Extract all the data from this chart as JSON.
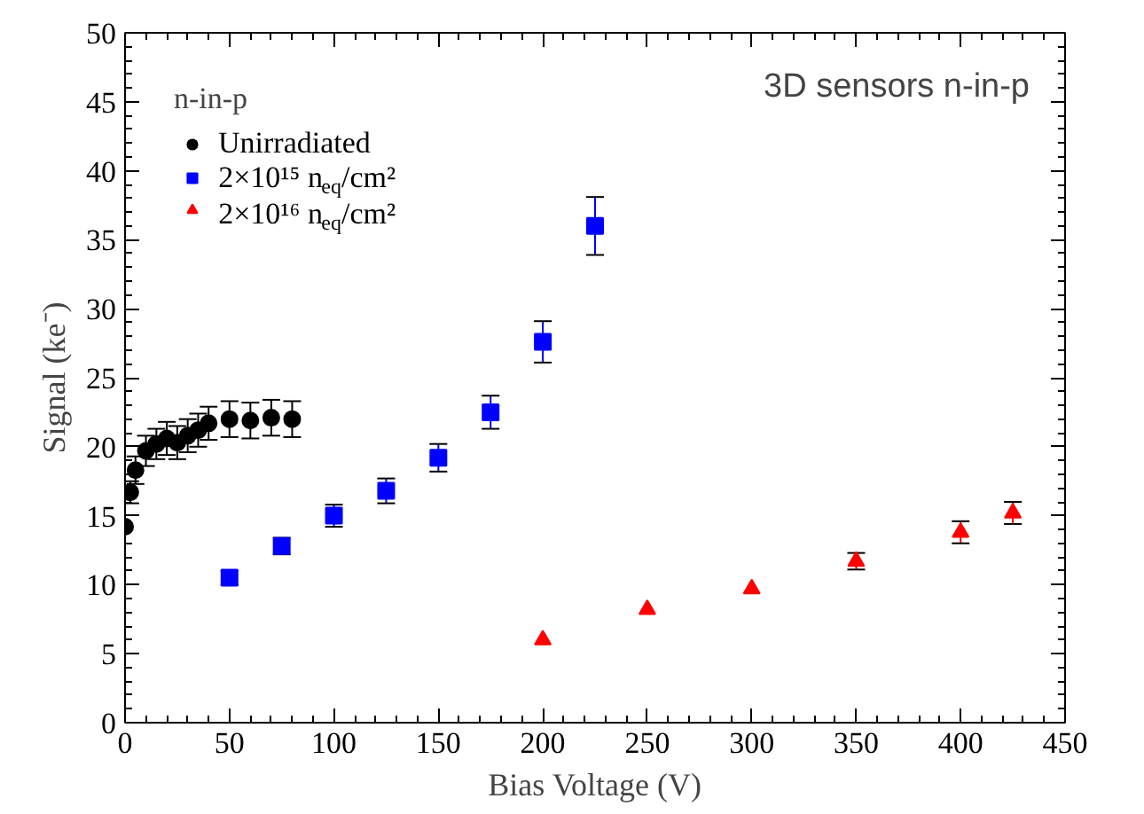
{
  "chart_data": {
    "type": "scatter",
    "xlabel": "Bias Voltage (V)",
    "ylabel": "Signal (ke⁻)",
    "legend_title": "n-in-p",
    "annotations": [
      "3D sensors n-in-p"
    ],
    "xlim": [
      0,
      450
    ],
    "xticks": [
      0,
      50,
      100,
      150,
      200,
      250,
      300,
      350,
      400,
      450
    ],
    "ylim": [
      0,
      50
    ],
    "yticks": [
      0,
      5,
      10,
      15,
      20,
      25,
      30,
      35,
      40,
      45,
      50
    ],
    "grid": false,
    "legend": "top left",
    "series": [
      {
        "name": "Unirradiated",
        "color": "#000000",
        "marker": "circle",
        "x": [
          0,
          2.5,
          5,
          10,
          15,
          20,
          25,
          30,
          35,
          40,
          50,
          60,
          70,
          80
        ],
        "values": [
          14.2,
          16.7,
          18.3,
          19.7,
          20.2,
          20.6,
          20.3,
          20.8,
          21.2,
          21.7,
          22,
          21.9,
          22.1,
          22
        ],
        "errors": [
          null,
          0.8,
          1,
          1.1,
          1.1,
          1.2,
          1.2,
          1.2,
          1.2,
          1.2,
          1.3,
          1.3,
          1.3,
          1.3
        ]
      },
      {
        "name": "2×10¹⁵ n$_{eq}$/cm²",
        "color": "#0000ff",
        "marker": "square",
        "x": [
          50,
          75,
          100,
          125,
          150,
          175,
          200,
          225
        ],
        "values": [
          10.5,
          12.8,
          15,
          16.8,
          19.2,
          22.5,
          27.6,
          36
        ],
        "errors": [
          0.5,
          0.6,
          0.8,
          0.9,
          1,
          1.2,
          1.5,
          2.1
        ]
      },
      {
        "name": "2×10¹⁶ n$_{eq}$/cm²",
        "color": "#ff0000",
        "marker": "triangle",
        "x": [
          200,
          250,
          300,
          350,
          400,
          425
        ],
        "values": [
          6,
          8.2,
          9.7,
          11.7,
          13.8,
          15.2
        ],
        "errors": [
          null,
          null,
          null,
          0.6,
          0.8,
          0.8
        ]
      }
    ]
  }
}
